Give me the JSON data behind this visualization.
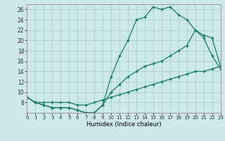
{
  "xlabel": "Humidex (Indice chaleur)",
  "background_color": "#cce8e8",
  "grid_color": "#aacfcf",
  "line_color": "#1a7a6a",
  "line1": {
    "x": [
      0,
      1,
      2,
      3,
      4,
      5,
      6,
      7,
      8,
      9,
      10,
      11,
      12,
      13,
      14,
      15,
      16,
      17,
      18,
      19,
      20,
      21,
      22,
      23
    ],
    "y": [
      9,
      8,
      7.5,
      7,
      7,
      7,
      6.5,
      6,
      6,
      7.5,
      13,
      17,
      20,
      24,
      24.5,
      26.5,
      26,
      26.5,
      25,
      24,
      22,
      20.5,
      17,
      14.5
    ]
  },
  "line2": {
    "x": [
      0,
      1,
      2,
      3,
      4,
      5,
      6,
      7,
      8,
      9,
      10,
      11,
      12,
      13,
      14,
      15,
      16,
      17,
      18,
      19,
      20,
      21,
      22,
      23
    ],
    "y": [
      9,
      8,
      7.5,
      7,
      7,
      7,
      6.5,
      6,
      6,
      7.5,
      10,
      11.5,
      13,
      14,
      15,
      15.5,
      16,
      17,
      18,
      19,
      22,
      21,
      20.5,
      15
    ]
  },
  "line3": {
    "x": [
      0,
      1,
      2,
      3,
      4,
      5,
      6,
      7,
      8,
      9,
      10,
      11,
      12,
      13,
      14,
      15,
      16,
      17,
      18,
      19,
      20,
      21,
      22,
      23
    ],
    "y": [
      9,
      8,
      8,
      8,
      8,
      8,
      7.5,
      7.5,
      8,
      8.5,
      9,
      9.5,
      10,
      10.5,
      11,
      11.5,
      12,
      12.5,
      13,
      13.5,
      14,
      14,
      14.5,
      15
    ]
  },
  "xlim": [
    0,
    23
  ],
  "ylim": [
    6,
    27
  ],
  "yticks": [
    8,
    10,
    12,
    14,
    16,
    18,
    20,
    22,
    24,
    26
  ],
  "xticks": [
    0,
    1,
    2,
    3,
    4,
    5,
    6,
    7,
    8,
    9,
    10,
    11,
    12,
    13,
    14,
    15,
    16,
    17,
    18,
    19,
    20,
    21,
    22,
    23
  ]
}
